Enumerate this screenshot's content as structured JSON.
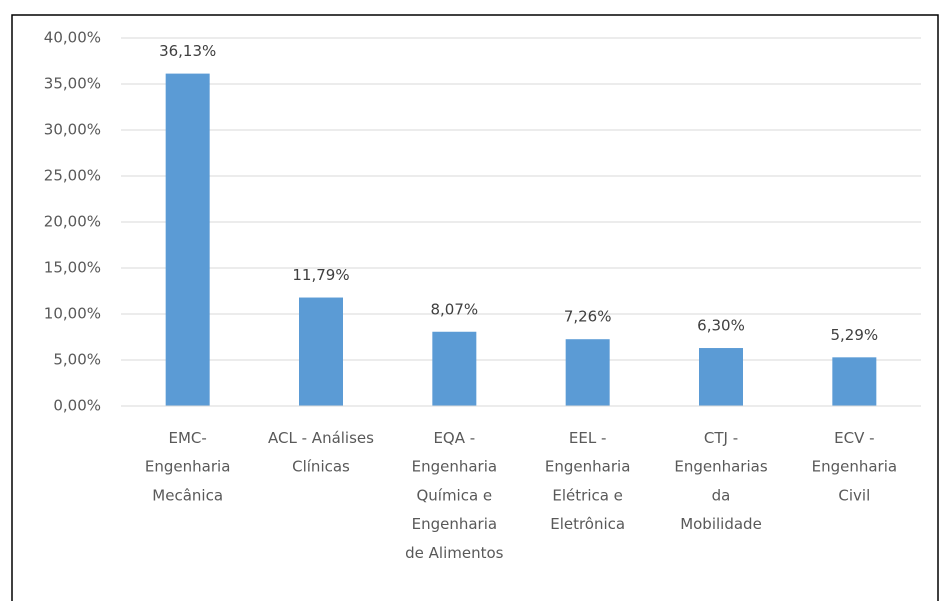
{
  "chart_data": {
    "type": "bar",
    "categories": [
      "EMC-\nEngenharia\nMecânica",
      "ACL - Análises\nClínicas",
      "EQA -\nEngenharia\nQuímica e\nEngenharia\nde Alimentos",
      "EEL -\nEngenharia\nElétrica e\nEletrônica",
      "CTJ -\nEngenharias\nda\nMobilidade",
      "ECV -\nEngenharia\nCivil"
    ],
    "values": [
      36.13,
      11.79,
      8.07,
      7.26,
      6.3,
      5.29
    ],
    "value_labels": [
      "36,13%",
      "11,79%",
      "8,07%",
      "7,26%",
      "6,30%",
      "5,29%"
    ],
    "color": "#5b9bd5",
    "ylim": [
      0,
      40
    ],
    "yticks": [
      {
        "value": 0,
        "label": "0,00%"
      },
      {
        "value": 5,
        "label": "5,00%"
      },
      {
        "value": 10,
        "label": "10,00%"
      },
      {
        "value": 15,
        "label": "15,00%"
      },
      {
        "value": 20,
        "label": "20,00%"
      },
      {
        "value": 25,
        "label": "25,00%"
      },
      {
        "value": 30,
        "label": "30,00%"
      },
      {
        "value": 35,
        "label": "35,00%"
      },
      {
        "value": 40,
        "label": "40,00%"
      }
    ],
    "grid": true
  }
}
